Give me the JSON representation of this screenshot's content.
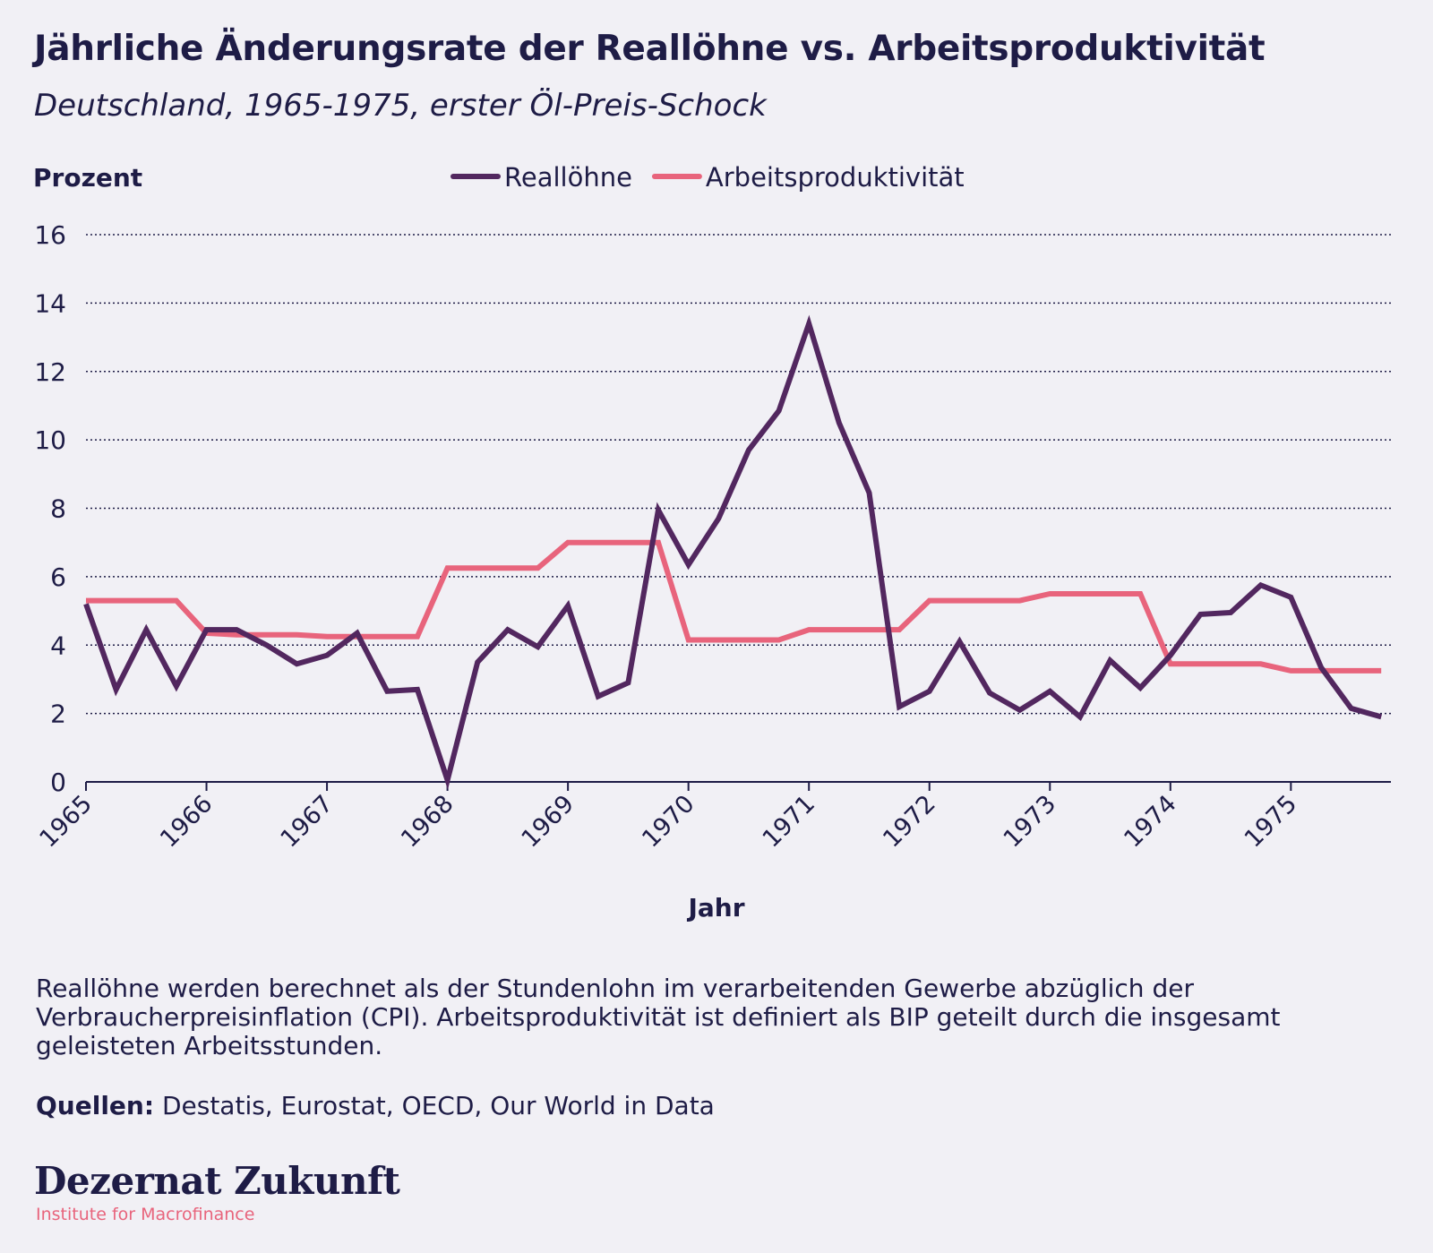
{
  "title": "Jährliche Änderungsrate der Reallöhne vs. Arbeitsproduktivität",
  "subtitle": "Deutschland, 1965-1975, erster Öl-Preis-Schock",
  "note": "Reallöhne werden berechnet als der Stundenlohn im verarbeitenden Gewerbe abzüglich der Verbraucherpreisinflation (CPI). Arbeitsproduktivität ist definiert als BIP geteilt durch die insgesamt geleisteten Arbeitsstunden.",
  "sources_label": "Quellen:",
  "sources_text": " Destatis, Eurostat, OECD, Our World in Data",
  "logo": "Dezernat Zukunft",
  "logo_sub": "Institute for Macrofinance",
  "colors": {
    "background": "#f1f0f5",
    "text": "#1e1c46",
    "wages": "#52275f",
    "productivity": "#e8647c"
  },
  "chart_data": {
    "type": "line",
    "ylabel": "Prozent",
    "xlabel": "Jahr",
    "ylim": [
      0,
      16
    ],
    "yticks": [
      0,
      2,
      4,
      6,
      8,
      10,
      12,
      14,
      16
    ],
    "xlim": [
      1965,
      1975.83
    ],
    "xticks": [
      1965,
      1966,
      1967,
      1968,
      1969,
      1970,
      1971,
      1972,
      1973,
      1974,
      1975
    ],
    "grid": "horizontal dotted",
    "legend": "top-center",
    "series": [
      {
        "name": "Reallöhne",
        "color": "#52275f",
        "x": [
          1965.0,
          1965.25,
          1965.5,
          1965.75,
          1966.0,
          1966.25,
          1966.5,
          1966.75,
          1967.0,
          1967.25,
          1967.5,
          1967.75,
          1968.0,
          1968.25,
          1968.5,
          1968.75,
          1969.0,
          1969.25,
          1969.5,
          1969.75,
          1970.0,
          1970.25,
          1970.5,
          1970.75,
          1971.0,
          1971.25,
          1971.5,
          1971.75,
          1972.0,
          1972.25,
          1972.5,
          1972.75,
          1973.0,
          1973.25,
          1973.5,
          1973.75,
          1974.0,
          1974.25,
          1974.5,
          1974.75,
          1975.0,
          1975.25,
          1975.5,
          1975.75
        ],
        "values": [
          5.2,
          2.7,
          4.45,
          2.8,
          4.45,
          4.45,
          4.0,
          3.45,
          3.7,
          4.35,
          2.65,
          2.7,
          0.05,
          3.5,
          4.45,
          3.95,
          5.15,
          2.5,
          2.9,
          7.95,
          6.35,
          7.7,
          9.7,
          10.85,
          13.4,
          10.5,
          8.45,
          2.2,
          2.65,
          4.1,
          2.6,
          2.1,
          2.65,
          1.9,
          3.55,
          2.75,
          3.7,
          4.9,
          4.95,
          5.75,
          5.4,
          3.35,
          2.15,
          1.9
        ]
      },
      {
        "name": "Arbeitsproduktivität",
        "color": "#e8647c",
        "x": [
          1965.0,
          1965.25,
          1965.5,
          1965.75,
          1966.0,
          1966.25,
          1966.5,
          1966.75,
          1967.0,
          1967.25,
          1967.5,
          1967.75,
          1968.0,
          1968.25,
          1968.5,
          1968.75,
          1969.0,
          1969.25,
          1969.5,
          1969.75,
          1970.0,
          1970.25,
          1970.5,
          1970.75,
          1971.0,
          1971.25,
          1971.5,
          1971.75,
          1972.0,
          1972.25,
          1972.5,
          1972.75,
          1973.0,
          1973.25,
          1973.5,
          1973.75,
          1974.0,
          1974.25,
          1974.5,
          1974.75,
          1975.0,
          1975.25,
          1975.5,
          1975.75
        ],
        "values": [
          5.3,
          5.3,
          5.3,
          5.3,
          4.35,
          4.3,
          4.3,
          4.3,
          4.25,
          4.25,
          4.25,
          4.25,
          6.25,
          6.25,
          6.25,
          6.25,
          7.0,
          7.0,
          7.0,
          7.0,
          4.15,
          4.15,
          4.15,
          4.15,
          4.45,
          4.45,
          4.45,
          4.45,
          5.3,
          5.3,
          5.3,
          5.3,
          5.5,
          5.5,
          5.5,
          5.5,
          3.45,
          3.45,
          3.45,
          3.45,
          3.25,
          3.25,
          3.25,
          3.25
        ]
      }
    ]
  }
}
